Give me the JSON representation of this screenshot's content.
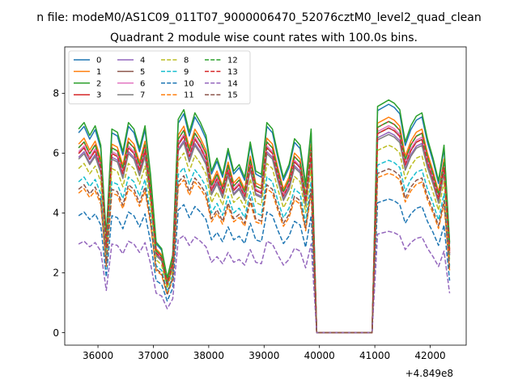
{
  "figure": {
    "suptitle": "n file: modeM0/AS1C09_011T07_9000006470_52076cztM0_level2_quad_clean",
    "offset_text": "+4.849e8"
  },
  "chart_data": {
    "type": "line",
    "title": "Quadrant 2 module wise count rates with 100.0s bins.",
    "xlabel": "",
    "ylabel": "",
    "x_offset": 484900000,
    "xlim": [
      35400,
      42650
    ],
    "ylim": [
      -0.42,
      9.55
    ],
    "x_ticks": [
      36000,
      37000,
      38000,
      39000,
      40000,
      41000,
      42000
    ],
    "x_tick_labels": [
      "36000",
      "37000",
      "38000",
      "39000",
      "40000",
      "41000",
      "42000"
    ],
    "y_ticks": [
      0,
      2,
      4,
      6,
      8
    ],
    "y_tick_labels": [
      "0",
      "2",
      "4",
      "6",
      "8"
    ],
    "grid": false,
    "legend_position": "top-left",
    "legend_columns": 4,
    "base_profile": {
      "x": [
        35650,
        35750,
        35850,
        35950,
        36050,
        36150,
        36250,
        36350,
        36450,
        36550,
        36650,
        36750,
        36850,
        36950,
        37050,
        37150,
        37250,
        37350,
        37450,
        37550,
        37650,
        37750,
        37850,
        37950,
        38050,
        38150,
        38250,
        38350,
        38450,
        38550,
        38650,
        38750,
        38850,
        38950,
        39050,
        39150,
        39250,
        39350,
        39450,
        39550,
        39650,
        39750,
        39850,
        39950,
        40050,
        40150,
        40250,
        40350,
        40450,
        40550,
        40650,
        40750,
        40850,
        40950,
        41050,
        41150,
        41250,
        41350,
        41450,
        41550,
        41650,
        41750,
        41850,
        41950,
        42050,
        42150,
        42250,
        42350
      ],
      "y": [
        6.3,
        6.5,
        6.1,
        6.4,
        5.8,
        3.0,
        6.3,
        6.2,
        5.6,
        6.5,
        6.3,
        5.7,
        6.4,
        4.9,
        2.8,
        2.6,
        1.7,
        2.4,
        6.6,
        6.9,
        6.2,
        6.8,
        6.5,
        6.1,
        5.0,
        5.4,
        4.9,
        5.7,
        5.0,
        5.2,
        4.8,
        5.9,
        5.0,
        4.9,
        6.5,
        6.3,
        5.5,
        4.8,
        5.2,
        6.0,
        5.8,
        4.6,
        6.3,
        0,
        0,
        0,
        0,
        0,
        0,
        0,
        0,
        0,
        0,
        0,
        7.0,
        7.1,
        7.2,
        7.1,
        6.9,
        5.9,
        6.4,
        6.7,
        6.8,
        6.0,
        5.4,
        4.7,
        5.8,
        2.8
      ]
    },
    "series": [
      {
        "name": "0",
        "color": "#1f77b4",
        "dashed": false,
        "scale": 1.06
      },
      {
        "name": "1",
        "color": "#ff7f0e",
        "dashed": false,
        "scale": 1.0
      },
      {
        "name": "2",
        "color": "#2ca02c",
        "dashed": false,
        "scale": 1.08
      },
      {
        "name": "3",
        "color": "#d62728",
        "dashed": false,
        "scale": 0.98
      },
      {
        "name": "4",
        "color": "#9467bd",
        "dashed": false,
        "scale": 0.93
      },
      {
        "name": "5",
        "color": "#8c564b",
        "dashed": false,
        "scale": 0.95
      },
      {
        "name": "6",
        "color": "#e377c2",
        "dashed": false,
        "scale": 0.96
      },
      {
        "name": "7",
        "color": "#7f7f7f",
        "dashed": false,
        "scale": 0.92
      },
      {
        "name": "8",
        "color": "#bcbd22",
        "dashed": true,
        "scale": 0.87
      },
      {
        "name": "9",
        "color": "#17becf",
        "dashed": true,
        "scale": 0.8
      },
      {
        "name": "10",
        "color": "#1f77b4",
        "dashed": true,
        "scale": 0.62
      },
      {
        "name": "11",
        "color": "#ff7f0e",
        "dashed": true,
        "scale": 0.74
      },
      {
        "name": "12",
        "color": "#2ca02c",
        "dashed": true,
        "scale": 0.98
      },
      {
        "name": "13",
        "color": "#d62728",
        "dashed": true,
        "scale": 0.95
      },
      {
        "name": "14",
        "color": "#9467bd",
        "dashed": true,
        "scale": 0.47
      },
      {
        "name": "15",
        "color": "#8c564b",
        "dashed": true,
        "scale": 0.76
      }
    ]
  }
}
